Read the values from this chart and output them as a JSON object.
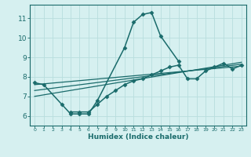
{
  "xlabel": "Humidex (Indice chaleur)",
  "background_color": "#d6f0f0",
  "grid_color": "#b8dede",
  "line_color": "#1a6b6b",
  "xlim": [
    -0.5,
    23.5
  ],
  "ylim": [
    5.5,
    11.7
  ],
  "xticks": [
    0,
    1,
    2,
    3,
    4,
    5,
    6,
    7,
    8,
    9,
    10,
    11,
    12,
    13,
    14,
    15,
    16,
    17,
    18,
    19,
    20,
    21,
    22,
    23
  ],
  "yticks": [
    6,
    7,
    8,
    9,
    10,
    11
  ],
  "series": [
    {
      "x": [
        0,
        1,
        3,
        4,
        5,
        6,
        7,
        10,
        11,
        12,
        13,
        14,
        16
      ],
      "y": [
        7.7,
        7.6,
        6.6,
        6.1,
        6.1,
        6.1,
        6.8,
        9.5,
        10.8,
        11.2,
        11.3,
        10.1,
        8.8
      ],
      "marker": "D",
      "markersize": 2.5,
      "linewidth": 1.1,
      "connected": true
    },
    {
      "x": [
        4,
        5,
        6,
        7,
        8,
        9,
        10,
        11,
        12,
        13,
        14,
        15,
        16,
        17,
        18,
        19,
        20,
        21,
        22,
        23
      ],
      "y": [
        6.2,
        6.2,
        6.2,
        6.6,
        7.0,
        7.3,
        7.6,
        7.8,
        7.9,
        8.1,
        8.3,
        8.5,
        8.6,
        7.9,
        7.9,
        8.3,
        8.5,
        8.7,
        8.4,
        8.6
      ],
      "marker": "D",
      "markersize": 2.5,
      "linewidth": 1.1,
      "connected": true
    },
    {
      "x": [
        0,
        23
      ],
      "y": [
        7.6,
        8.55
      ],
      "marker": null,
      "linewidth": 0.9,
      "connected": true
    },
    {
      "x": [
        0,
        23
      ],
      "y": [
        7.3,
        8.65
      ],
      "marker": null,
      "linewidth": 0.9,
      "connected": true
    },
    {
      "x": [
        0,
        23
      ],
      "y": [
        7.0,
        8.75
      ],
      "marker": null,
      "linewidth": 0.9,
      "connected": true
    }
  ]
}
